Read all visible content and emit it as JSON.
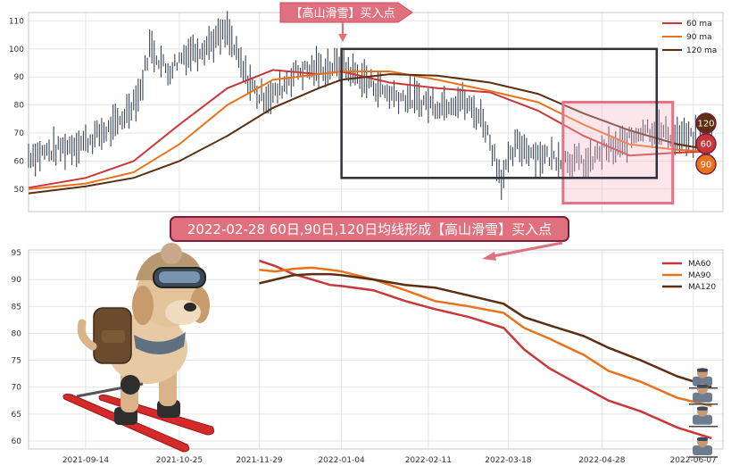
{
  "chart_data": [
    {
      "type": "line",
      "panel": "top",
      "description": "Price (OHLC) with 60/90/120-day moving averages",
      "ylim": [
        42,
        113
      ],
      "yticks": [
        50,
        60,
        70,
        80,
        90,
        100,
        110
      ],
      "grid": true,
      "legend_position": "top-right",
      "series": [
        {
          "name": "60 ma",
          "color": "#c8383a",
          "x": [
            "2021-08-20",
            "2021-09-14",
            "2021-10-05",
            "2021-10-25",
            "2021-11-15",
            "2021-12-05",
            "2021-12-25",
            "2022-01-04",
            "2022-01-25",
            "2022-02-15",
            "2022-03-10",
            "2022-03-31",
            "2022-04-20",
            "2022-05-10",
            "2022-05-31",
            "2022-06-15"
          ],
          "values": [
            50.5,
            54,
            60,
            73,
            86,
            92.5,
            91,
            92,
            88,
            86,
            84.5,
            78,
            69,
            62,
            63,
            63.5
          ]
        },
        {
          "name": "90 ma",
          "color": "#e8731c",
          "x": [
            "2021-08-20",
            "2021-09-14",
            "2021-10-05",
            "2021-10-25",
            "2021-11-15",
            "2021-12-05",
            "2021-12-25",
            "2022-01-04",
            "2022-01-25",
            "2022-02-15",
            "2022-03-10",
            "2022-03-31",
            "2022-04-20",
            "2022-05-10",
            "2022-05-31",
            "2022-06-15"
          ],
          "values": [
            50,
            52,
            56,
            66,
            80,
            89,
            91,
            92,
            92,
            89,
            85,
            81,
            73,
            66,
            64,
            63.5
          ]
        },
        {
          "name": "120 ma",
          "color": "#5c2e12",
          "x": [
            "2021-08-20",
            "2021-09-14",
            "2021-10-05",
            "2021-10-25",
            "2021-11-15",
            "2021-12-05",
            "2021-12-25",
            "2022-01-04",
            "2022-01-25",
            "2022-02-15",
            "2022-03-10",
            "2022-03-31",
            "2022-04-20",
            "2022-05-10",
            "2022-05-31",
            "2022-06-15"
          ],
          "values": [
            48.5,
            51,
            54,
            60,
            69,
            79,
            86,
            89,
            91,
            90.5,
            88,
            84,
            77,
            71,
            66,
            64
          ]
        }
      ],
      "price_anchors": {
        "x": [
          "2021-08-20",
          "2021-09-01",
          "2021-09-14",
          "2021-09-28",
          "2021-10-08",
          "2021-10-12",
          "2021-10-20",
          "2021-10-27",
          "2021-11-05",
          "2021-11-15",
          "2021-11-22",
          "2021-11-29",
          "2021-12-06",
          "2021-12-15",
          "2021-12-25",
          "2022-01-04",
          "2022-01-14",
          "2022-01-25",
          "2022-02-04",
          "2022-02-15",
          "2022-02-25",
          "2022-03-07",
          "2022-03-15",
          "2022-03-22",
          "2022-04-01",
          "2022-04-12",
          "2022-04-22",
          "2022-04-28",
          "2022-05-06",
          "2022-05-16",
          "2022-05-25",
          "2022-06-05",
          "2022-06-15"
        ],
        "values": [
          62,
          64,
          67,
          73,
          85,
          101,
          92,
          98,
          101,
          106,
          92,
          83,
          84,
          92,
          93,
          94,
          89,
          84,
          82,
          80,
          82,
          75,
          54,
          66,
          62,
          61,
          59,
          64,
          65,
          72,
          70,
          68,
          67
        ]
      },
      "annotations": [
        {
          "text": "【高山滑雪】买入点",
          "x": "2022-01-04",
          "kind": "arrow-callout"
        },
        {
          "kind": "rectangle",
          "x0": "2022-01-04",
          "x1": "2022-05-22",
          "y0": 54,
          "y1": 100,
          "color": "#2f3038"
        },
        {
          "kind": "rectangle",
          "x0": "2022-04-11",
          "x1": "2022-05-29",
          "y0": 45,
          "y1": 81,
          "color": "#e57283"
        }
      ],
      "end_badges": [
        {
          "text": "120",
          "color": "#5c2e12"
        },
        {
          "text": "60",
          "color": "#c8383a"
        },
        {
          "text": "90",
          "color": "#e8731c"
        }
      ]
    },
    {
      "type": "line",
      "panel": "bottom",
      "title": "2022-02-28 60日,90日,120日均线形成【高山滑雪】买入点",
      "xlim": [
        "2021-08-20",
        "2022-06-20"
      ],
      "x_ticks": [
        "2021-09-14",
        "2021-10-25",
        "2021-11-29",
        "2022-01-04",
        "2022-02-11",
        "2022-03-18",
        "2022-04-28",
        "2022-06-07"
      ],
      "ylim": [
        58.5,
        95.5
      ],
      "yticks": [
        60,
        65,
        70,
        75,
        80,
        85,
        90,
        95
      ],
      "grid": true,
      "legend_position": "top-right",
      "series": [
        {
          "name": "MA60",
          "color": "#c8383a",
          "x": [
            "2021-11-29",
            "2021-12-06",
            "2021-12-14",
            "2021-12-22",
            "2021-12-30",
            "2022-01-04",
            "2022-01-18",
            "2022-02-01",
            "2022-02-14",
            "2022-03-01",
            "2022-03-16",
            "2022-03-25",
            "2022-04-05",
            "2022-04-20",
            "2022-05-01",
            "2022-05-15",
            "2022-05-31",
            "2022-06-15"
          ],
          "values": [
            93.5,
            92.5,
            91,
            90,
            89,
            88.8,
            88,
            86,
            84.5,
            83,
            81,
            77,
            73.5,
            70,
            67.5,
            65.5,
            62.5,
            60.5
          ]
        },
        {
          "name": "MA90",
          "color": "#e8731c",
          "x": [
            "2021-11-29",
            "2021-12-06",
            "2021-12-14",
            "2021-12-22",
            "2021-12-30",
            "2022-01-04",
            "2022-01-18",
            "2022-02-01",
            "2022-02-14",
            "2022-03-01",
            "2022-03-16",
            "2022-03-25",
            "2022-04-05",
            "2022-04-20",
            "2022-05-01",
            "2022-05-15",
            "2022-05-31",
            "2022-06-15"
          ],
          "values": [
            91.8,
            91.5,
            92,
            92.2,
            91.8,
            91.5,
            90,
            88,
            86,
            85,
            83.8,
            81,
            79,
            76,
            73,
            71,
            68,
            66.5
          ]
        },
        {
          "name": "MA120",
          "color": "#5c2e12",
          "x": [
            "2021-11-29",
            "2021-12-06",
            "2021-12-14",
            "2021-12-22",
            "2021-12-30",
            "2022-01-04",
            "2022-01-18",
            "2022-02-01",
            "2022-02-14",
            "2022-03-01",
            "2022-03-16",
            "2022-03-25",
            "2022-04-05",
            "2022-04-20",
            "2022-05-01",
            "2022-05-15",
            "2022-05-31",
            "2022-06-15"
          ],
          "values": [
            89.3,
            90,
            90.8,
            91,
            91,
            90.8,
            90,
            89,
            88.5,
            87,
            85.5,
            83,
            81.5,
            79.5,
            77.3,
            75,
            72,
            70
          ]
        }
      ]
    }
  ],
  "labels": {
    "top_callout": "【高山滑雪】买入点",
    "bottom_title": "2022-02-28 60日,90日,120日均线形成【高山滑雪】买入点"
  },
  "illustrations": {
    "left": "skiing-dog",
    "right": "stacked-ski-figures"
  }
}
